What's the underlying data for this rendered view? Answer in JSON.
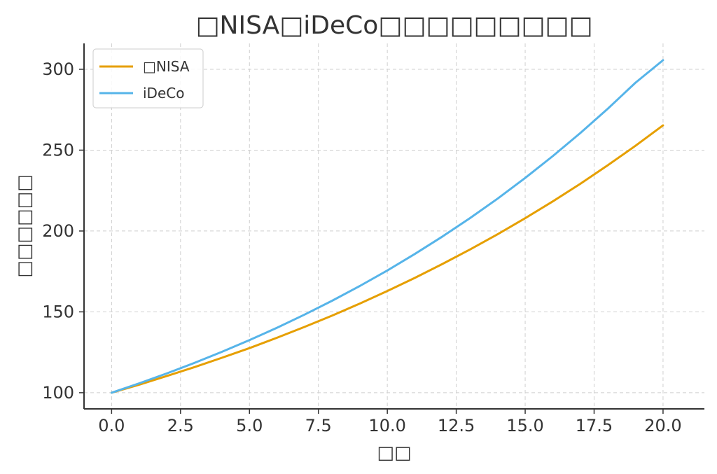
{
  "chart_data": {
    "type": "line",
    "title": "□NISA□iDeCo□□□□□□□□□",
    "xlabel": "□□",
    "ylabel": "□□□□□□",
    "xlim": [
      -1,
      21.5
    ],
    "ylim": [
      90,
      316
    ],
    "xticks": [
      0.0,
      2.5,
      5.0,
      7.5,
      10.0,
      12.5,
      15.0,
      17.5,
      20.0
    ],
    "xtick_labels": [
      "0.0",
      "2.5",
      "5.0",
      "7.5",
      "10.0",
      "12.5",
      "15.0",
      "17.5",
      "20.0"
    ],
    "yticks": [
      100,
      150,
      200,
      250,
      300
    ],
    "ytick_labels": [
      "100",
      "150",
      "200",
      "250",
      "300"
    ],
    "grid": true,
    "legend_position": "top-left",
    "x": [
      0,
      1,
      2,
      3,
      4,
      5,
      6,
      7,
      8,
      9,
      10,
      11,
      12,
      13,
      14,
      15,
      16,
      17,
      18,
      19,
      20
    ],
    "series": [
      {
        "name": "□NISA",
        "color": "#e69f00",
        "values": [
          100.0,
          105.0,
          110.3,
          115.8,
          121.6,
          127.6,
          134.0,
          140.7,
          147.7,
          155.1,
          162.9,
          171.0,
          179.6,
          188.6,
          198.0,
          207.9,
          218.3,
          229.2,
          240.7,
          252.7,
          265.3
        ]
      },
      {
        "name": "iDeCo",
        "color": "#56b4e9",
        "values": [
          100.0,
          105.8,
          111.9,
          118.4,
          125.3,
          132.5,
          140.2,
          148.3,
          156.9,
          166.0,
          175.6,
          185.8,
          196.6,
          208.0,
          220.0,
          232.8,
          246.3,
          260.6,
          275.7,
          291.7,
          305.6
        ]
      }
    ]
  }
}
